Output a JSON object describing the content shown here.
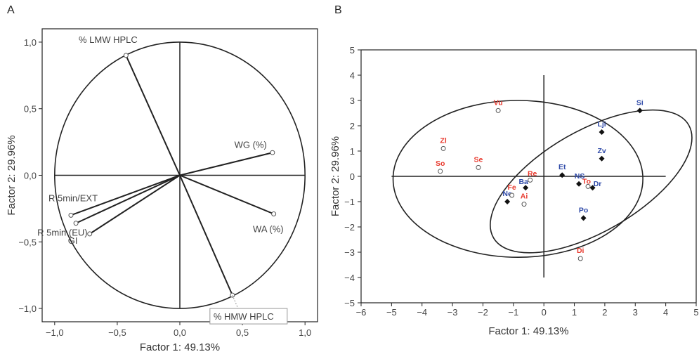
{
  "chart_data": [
    {
      "panel_label": "A",
      "type": "scatter",
      "subtype": "loading-plot",
      "xlabel": "Factor 1: 49.13%",
      "ylabel": "Factor 2: 29.96%",
      "xlim": [
        -1.1,
        1.1
      ],
      "ylim": [
        -1.1,
        1.1
      ],
      "xticks": [
        -1.0,
        -0.5,
        0.0,
        0.5,
        1.0
      ],
      "xtick_labels": [
        "−1,0",
        "−0,5",
        "0,0",
        "0,5",
        "1,0"
      ],
      "yticks": [
        -1.0,
        -0.5,
        0.0,
        0.5,
        1.0
      ],
      "ytick_labels": [
        "−1,0",
        "−0,5",
        "0,0",
        "0,5",
        "1,0"
      ],
      "grid": false,
      "unit_circle": true,
      "vectors": [
        {
          "label": "% LMW HPLC",
          "x": -0.43,
          "y": 0.9
        },
        {
          "label": "WG (%)",
          "x": 0.74,
          "y": 0.17
        },
        {
          "label": "WA (%)",
          "x": 0.75,
          "y": -0.29
        },
        {
          "label": "% HMW HPLC",
          "x": 0.42,
          "y": -0.9,
          "boxed": true
        },
        {
          "label": "R 5min/EXT",
          "x": -0.87,
          "y": -0.3
        },
        {
          "label": "R 5min (EU)",
          "x": -0.83,
          "y": -0.36
        },
        {
          "label": "GI",
          "x": -0.72,
          "y": -0.44
        }
      ]
    },
    {
      "panel_label": "B",
      "type": "scatter",
      "subtype": "score-plot",
      "xlabel": "Factor 1: 49.13%",
      "ylabel": "Factor 2: 29.96%",
      "xlim": [
        -6,
        5
      ],
      "ylim": [
        -5,
        5
      ],
      "xticks": [
        -6,
        -5,
        -4,
        -3,
        -2,
        -1,
        0,
        1,
        2,
        3,
        4,
        5
      ],
      "xtick_labels": [
        "−6",
        "−5",
        "−4",
        "−3",
        "−2",
        "−1",
        "0",
        "1",
        "2",
        "3",
        "4",
        "5"
      ],
      "yticks": [
        5,
        4,
        3,
        2,
        1,
        0,
        -1,
        -2,
        -3,
        -4,
        -5
      ],
      "ytick_labels": [
        "5",
        "4",
        "3",
        "2",
        "1",
        "0",
        "−1",
        "−2",
        "−3",
        "−4",
        "−5"
      ],
      "grid": false,
      "colors": {
        "red": "#e83a2e",
        "blue": "#2f4aa8"
      },
      "ellipses": [
        {
          "cx": -0.85,
          "cy": -0.1,
          "rx": 4.1,
          "ry": 3.1,
          "angle_deg": 0
        },
        {
          "cx": 1.55,
          "cy": -0.2,
          "rx": 3.7,
          "ry": 2.0,
          "angle_deg": 30
        }
      ],
      "points": [
        {
          "label": "Si",
          "x": 3.15,
          "y": 2.6,
          "marker": "diamond",
          "color": "blue"
        },
        {
          "label": "Lji",
          "x": 1.9,
          "y": 1.75,
          "marker": "diamond",
          "color": "blue"
        },
        {
          "label": "Zv",
          "x": 1.9,
          "y": 0.7,
          "marker": "diamond",
          "color": "blue"
        },
        {
          "label": "Et",
          "x": 0.6,
          "y": 0.05,
          "marker": "diamond",
          "color": "blue"
        },
        {
          "label": "NS",
          "x": 1.15,
          "y": -0.3,
          "marker": "diamond",
          "color": "blue"
        },
        {
          "label": "Dr",
          "x": 1.6,
          "y": -0.45,
          "marker": "diamond",
          "color": "blue"
        },
        {
          "label": "Ba",
          "x": -0.6,
          "y": -0.45,
          "marker": "diamond",
          "color": "blue"
        },
        {
          "label": "Ne",
          "x": -1.2,
          "y": -1.0,
          "marker": "diamond",
          "color": "blue"
        },
        {
          "label": "Po",
          "x": 1.3,
          "y": -1.65,
          "marker": "diamond",
          "color": "blue"
        },
        {
          "label": "Vu",
          "x": -1.5,
          "y": 2.6,
          "marker": "circle",
          "color": "red"
        },
        {
          "label": "Zl",
          "x": -3.3,
          "y": 1.1,
          "marker": "circle",
          "color": "red"
        },
        {
          "label": "Se",
          "x": -2.15,
          "y": 0.35,
          "marker": "circle",
          "color": "red"
        },
        {
          "label": "So",
          "x": -3.4,
          "y": 0.2,
          "marker": "circle",
          "color": "red"
        },
        {
          "label": "Re",
          "x": -0.45,
          "y": -0.15,
          "marker": "circle",
          "color": "red"
        },
        {
          "label": "Fe",
          "x": -1.05,
          "y": -0.75,
          "marker": "circle",
          "color": "red"
        },
        {
          "label": "Ai",
          "x": -0.65,
          "y": -1.1,
          "marker": "circle",
          "color": "red"
        },
        {
          "label": "To",
          "x": 1.45,
          "y": -0.4,
          "marker": "circle",
          "color": "red"
        },
        {
          "label": "Di",
          "x": 1.2,
          "y": -3.25,
          "marker": "circle",
          "color": "red"
        }
      ]
    }
  ]
}
